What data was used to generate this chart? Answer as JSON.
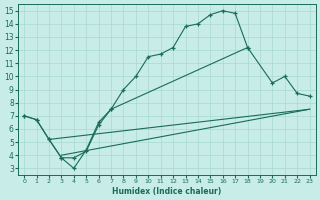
{
  "xlabel": "Humidex (Indice chaleur)",
  "bg_color": "#c8ece8",
  "line_color": "#1a6b5a",
  "grid_color": "#a8d8d0",
  "xlim": [
    -0.5,
    23.5
  ],
  "ylim": [
    2.5,
    15.5
  ],
  "xticks": [
    0,
    1,
    2,
    3,
    4,
    5,
    6,
    7,
    8,
    9,
    10,
    11,
    12,
    13,
    14,
    15,
    16,
    17,
    18,
    19,
    20,
    21,
    22,
    23
  ],
  "yticks": [
    3,
    4,
    5,
    6,
    7,
    8,
    9,
    10,
    11,
    12,
    13,
    14,
    15
  ],
  "curve1_x": [
    0,
    1,
    2,
    3,
    4,
    5,
    6,
    7,
    8,
    9,
    10,
    11,
    12,
    13,
    14,
    15,
    16,
    17,
    18
  ],
  "curve1_y": [
    7.0,
    6.7,
    5.2,
    3.8,
    3.0,
    4.4,
    6.5,
    7.5,
    9.0,
    10.0,
    11.5,
    11.7,
    12.2,
    13.8,
    14.0,
    14.7,
    15.0,
    14.8,
    12.2
  ],
  "curve2_x": [
    0,
    1,
    2,
    3,
    4,
    5,
    6,
    7,
    18,
    20,
    21,
    22,
    23
  ],
  "curve2_y": [
    7.0,
    6.7,
    5.2,
    3.8,
    3.8,
    4.3,
    6.3,
    7.5,
    12.2,
    9.5,
    10.0,
    8.7,
    8.5
  ],
  "curve3_x": [
    2,
    23
  ],
  "curve3_y": [
    5.2,
    7.5
  ],
  "curve4_x": [
    3,
    23
  ],
  "curve4_y": [
    4.0,
    7.5
  ]
}
